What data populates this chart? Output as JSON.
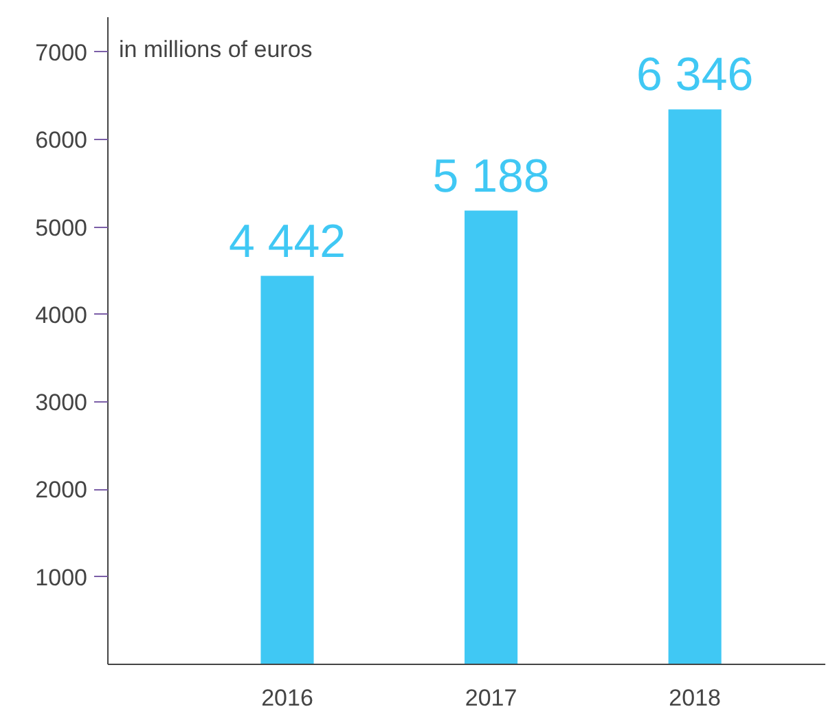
{
  "chart_data": {
    "type": "bar",
    "categories": [
      "2016",
      "2017",
      "2018"
    ],
    "values": [
      4442,
      5188,
      6346
    ],
    "value_labels": [
      "4 442",
      "5 188",
      "6 346"
    ],
    "color": "#40c8f4",
    "ylim": [
      0,
      7400
    ],
    "yticks": [
      1000,
      2000,
      3000,
      4000,
      5000,
      6000,
      7000
    ],
    "grid": false,
    "annotations": [
      "in millions of euros"
    ]
  }
}
